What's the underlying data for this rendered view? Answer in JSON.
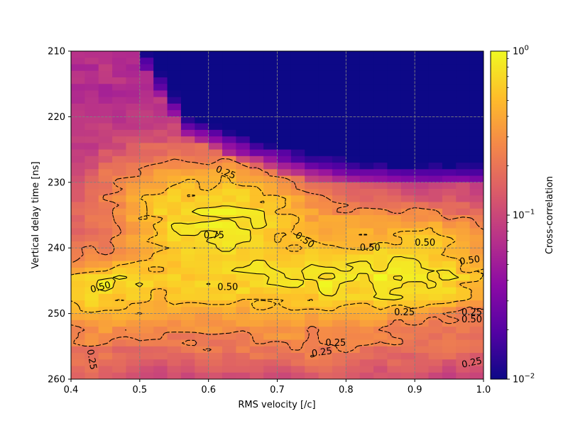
{
  "chart_data": {
    "type": "heatmap",
    "title": "",
    "xlabel": "RMS velocity [/c]",
    "ylabel": "Vertical delay time [ns]",
    "xlim": [
      0.4,
      1.0
    ],
    "ylim": [
      260,
      210
    ],
    "x_ticks": [
      "0.4",
      "0.5",
      "0.6",
      "0.7",
      "0.8",
      "0.9",
      "1.0"
    ],
    "y_ticks": [
      "210",
      "220",
      "230",
      "240",
      "250",
      "260"
    ],
    "grid": true,
    "colormap": "plasma",
    "colorbar": {
      "label": "Cross-correlation",
      "scale": "log",
      "range": [
        0.01,
        1
      ],
      "ticks": [
        {
          "value": 1,
          "base": "10",
          "exp": "0"
        },
        {
          "value": 0.1,
          "base": "10",
          "exp": "−1"
        },
        {
          "value": 0.01,
          "base": "10",
          "exp": "−2"
        }
      ]
    },
    "contour_levels": [
      0.25,
      0.5,
      0.75
    ],
    "contour_labels": [
      {
        "text": "0.25",
        "x": 0.625,
        "y": 228.5,
        "angle": 22
      },
      {
        "text": "0.75",
        "x": 0.608,
        "y": 238.1,
        "angle": 0
      },
      {
        "text": "0.50",
        "x": 0.74,
        "y": 238.8,
        "angle": 35
      },
      {
        "text": "0.50",
        "x": 0.835,
        "y": 240.0,
        "angle": 0
      },
      {
        "text": "0.50",
        "x": 0.915,
        "y": 239.2,
        "angle": 0
      },
      {
        "text": "0.50",
        "x": 0.98,
        "y": 241.9,
        "angle": -8
      },
      {
        "text": "0.50",
        "x": 0.443,
        "y": 246.0,
        "angle": -15
      },
      {
        "text": "0.50",
        "x": 0.628,
        "y": 246.0,
        "angle": 0
      },
      {
        "text": "0.25",
        "x": 0.885,
        "y": 249.8,
        "angle": 0
      },
      {
        "text": "0.25",
        "x": 0.983,
        "y": 249.8,
        "angle": 0
      },
      {
        "text": "0.50",
        "x": 0.983,
        "y": 250.9,
        "angle": 0
      },
      {
        "text": "0.25",
        "x": 0.765,
        "y": 255.9,
        "angle": -8
      },
      {
        "text": "0.25",
        "x": 0.785,
        "y": 254.5,
        "angle": 0
      },
      {
        "text": "0.25",
        "x": 0.43,
        "y": 257.0,
        "angle": 80
      },
      {
        "text": "0.25",
        "x": 0.983,
        "y": 257.5,
        "angle": -12
      }
    ]
  },
  "colors": {
    "grid": "#808080",
    "contour": "#000000",
    "colormap_stops": [
      "#0d0887",
      "#5302a3",
      "#8b0aa5",
      "#b83289",
      "#db5c68",
      "#f48849",
      "#febd2a",
      "#f0f921"
    ]
  }
}
